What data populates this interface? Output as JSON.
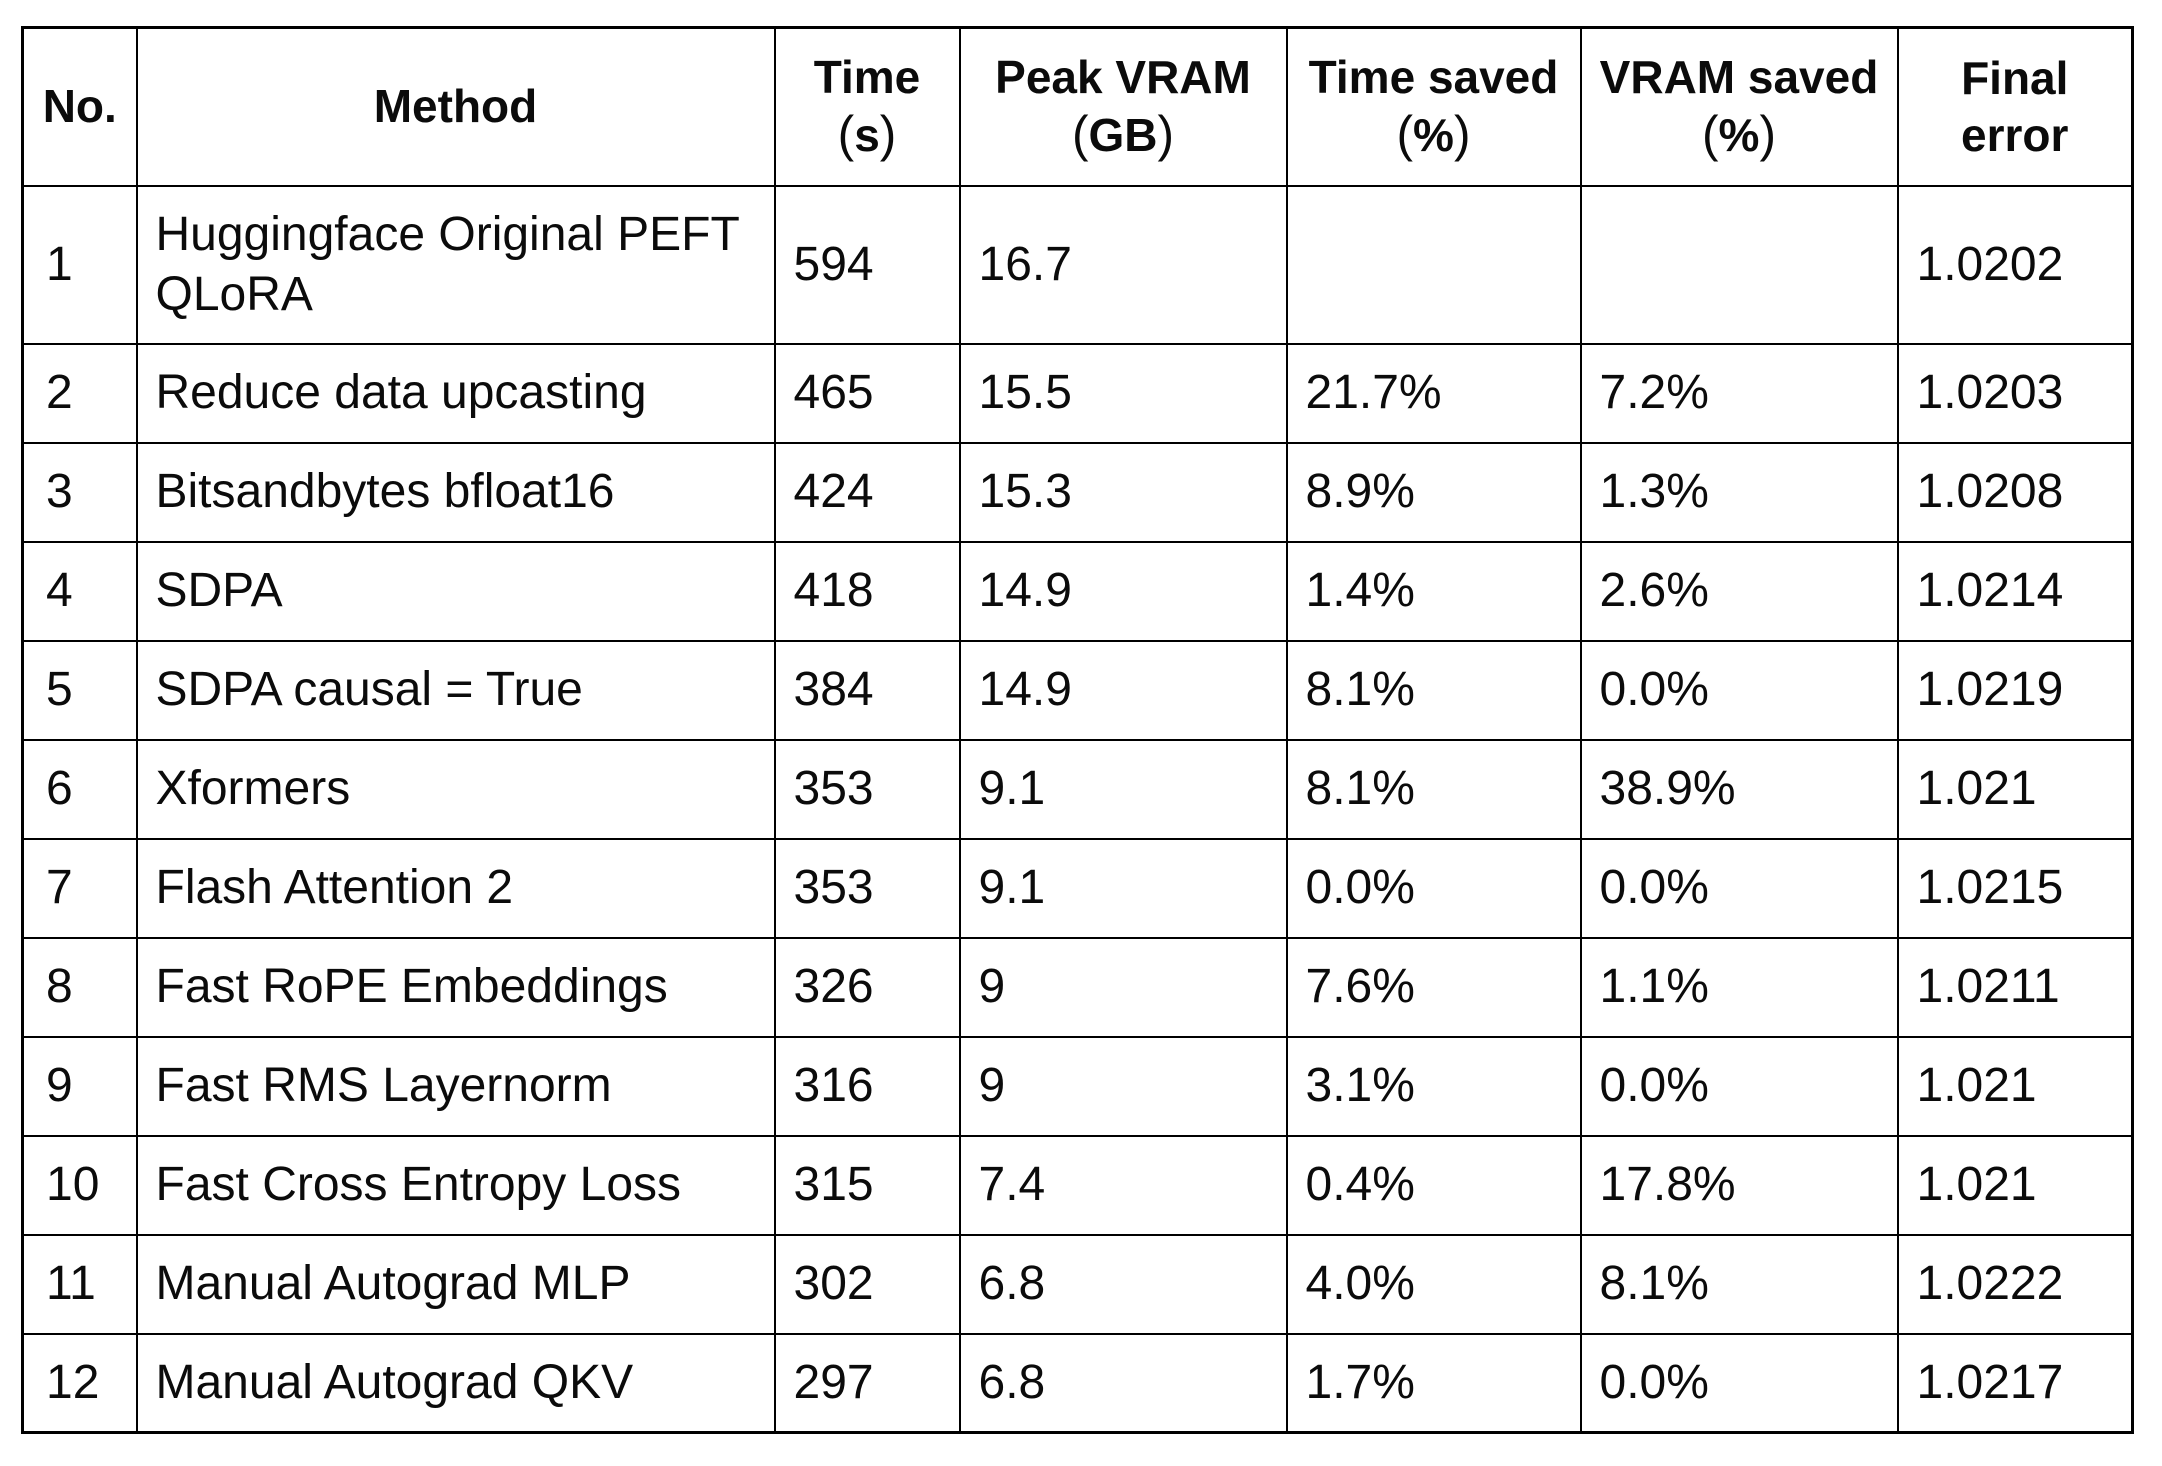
{
  "chart_data": {
    "type": "table",
    "columns": [
      {
        "label": "No."
      },
      {
        "label": "Method"
      },
      {
        "label": "Time",
        "unit": "s"
      },
      {
        "label": "Peak VRAM",
        "unit": "GB"
      },
      {
        "label": "Time saved",
        "unit": "%"
      },
      {
        "label": "VRAM saved",
        "unit": "%"
      },
      {
        "label": "Final",
        "label2": "error"
      }
    ],
    "punctuation": {
      "open_paren": "(",
      "close_paren": ")"
    },
    "rows": [
      {
        "no": "1",
        "method": "Huggingface Original PEFT QLoRA",
        "time_s": "594",
        "peak_vram_gb": "16.7",
        "time_saved": "",
        "vram_saved": "",
        "final_error": "1.0202"
      },
      {
        "no": "2",
        "method": "Reduce data upcasting",
        "time_s": "465",
        "peak_vram_gb": "15.5",
        "time_saved": "21.7%",
        "vram_saved": "7.2%",
        "final_error": "1.0203"
      },
      {
        "no": "3",
        "method": "Bitsandbytes bfloat16",
        "time_s": "424",
        "peak_vram_gb": "15.3",
        "time_saved": "8.9%",
        "vram_saved": "1.3%",
        "final_error": "1.0208"
      },
      {
        "no": "4",
        "method": "SDPA",
        "time_s": "418",
        "peak_vram_gb": "14.9",
        "time_saved": "1.4%",
        "vram_saved": "2.6%",
        "final_error": "1.0214"
      },
      {
        "no": "5",
        "method": "SDPA causal = True",
        "time_s": "384",
        "peak_vram_gb": "14.9",
        "time_saved": "8.1%",
        "vram_saved": "0.0%",
        "final_error": "1.0219"
      },
      {
        "no": "6",
        "method": "Xformers",
        "time_s": "353",
        "peak_vram_gb": "9.1",
        "time_saved": "8.1%",
        "vram_saved": "38.9%",
        "final_error": "1.021"
      },
      {
        "no": "7",
        "method": "Flash Attention 2",
        "time_s": "353",
        "peak_vram_gb": "9.1",
        "time_saved": "0.0%",
        "vram_saved": "0.0%",
        "final_error": "1.0215"
      },
      {
        "no": "8",
        "method": "Fast RoPE Embeddings",
        "time_s": "326",
        "peak_vram_gb": "9",
        "time_saved": "7.6%",
        "vram_saved": "1.1%",
        "final_error": "1.0211"
      },
      {
        "no": "9",
        "method": "Fast RMS Layernorm",
        "time_s": "316",
        "peak_vram_gb": "9",
        "time_saved": "3.1%",
        "vram_saved": "0.0%",
        "final_error": "1.021"
      },
      {
        "no": "10",
        "method": "Fast Cross Entropy Loss",
        "time_s": "315",
        "peak_vram_gb": "7.4",
        "time_saved": "0.4%",
        "vram_saved": "17.8%",
        "final_error": "1.021"
      },
      {
        "no": "11",
        "method": "Manual Autograd MLP",
        "time_s": "302",
        "peak_vram_gb": "6.8",
        "time_saved": "4.0%",
        "vram_saved": "8.1%",
        "final_error": "1.0222"
      },
      {
        "no": "12",
        "method": "Manual Autograd QKV",
        "time_s": "297",
        "peak_vram_gb": "6.8",
        "time_saved": "1.7%",
        "vram_saved": "0.0%",
        "final_error": "1.0217"
      }
    ],
    "styles": {
      "text_color": "#0b0b0b",
      "border_color": "#000000",
      "background": "#ffffff"
    }
  }
}
